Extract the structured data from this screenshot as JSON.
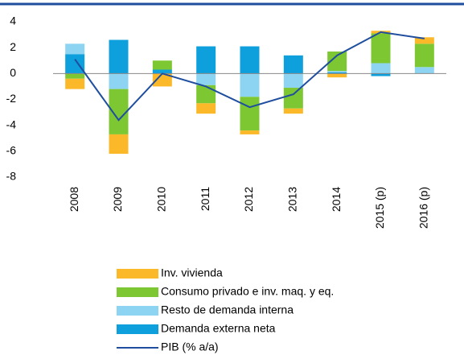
{
  "chart_data": {
    "type": "bar",
    "stacked": true,
    "categories": [
      "2008",
      "2009",
      "2010",
      "2011",
      "2012",
      "2013",
      "2014",
      "2015 (p)",
      "2016 (p)"
    ],
    "series": [
      {
        "name": "Inv. vivienda",
        "color": "#fbb829",
        "values": [
          -0.8,
          -1.5,
          -1.0,
          -0.8,
          -0.3,
          -0.4,
          -0.3,
          0.2,
          0.5
        ]
      },
      {
        "name": "Consumo privado e inv. maq. y eq.",
        "color": "#7dc832",
        "values": [
          -0.4,
          -3.5,
          0.7,
          -1.4,
          -2.6,
          -1.6,
          1.5,
          2.3,
          1.8
        ]
      },
      {
        "name": "Resto de demanda interna",
        "color": "#8dd3f2",
        "values": [
          0.8,
          -1.2,
          0,
          -0.9,
          -1.8,
          -1.1,
          0.1,
          0.8,
          0.5
        ]
      },
      {
        "name": "Demanda externa neta",
        "color": "#0ea0dc",
        "values": [
          1.5,
          2.6,
          0.3,
          2.1,
          2.1,
          1.4,
          0.1,
          -0.2,
          0
        ]
      },
      {
        "name": "PIB (% a/a)",
        "type": "line",
        "color": "#1f4e9e",
        "values": [
          1.1,
          -3.6,
          0,
          -1.0,
          -2.6,
          -1.6,
          1.4,
          3.2,
          2.7
        ]
      }
    ],
    "ylim": [
      -8,
      4
    ],
    "yticks": [
      -8,
      -6,
      -4,
      -2,
      0,
      2,
      4
    ]
  }
}
